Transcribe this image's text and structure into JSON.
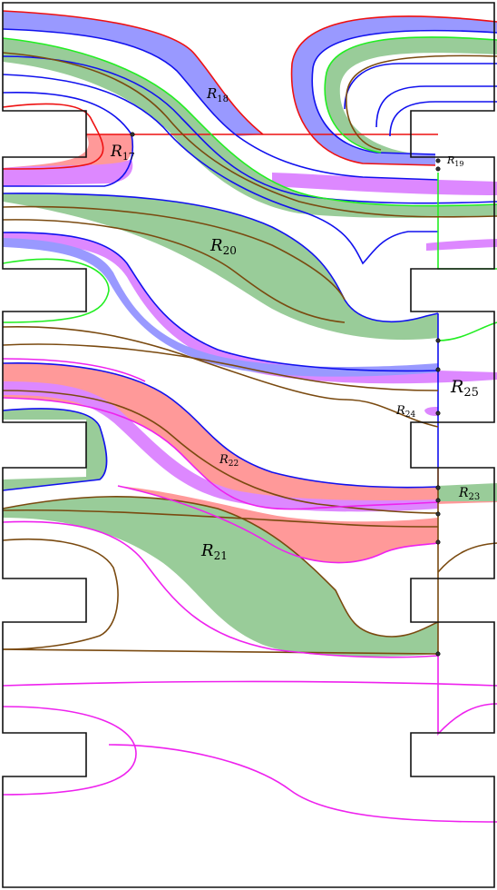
{
  "regions": [
    {
      "id": "r17",
      "name": "R",
      "sub": "17"
    },
    {
      "id": "r18",
      "name": "R",
      "sub": "18"
    },
    {
      "id": "r19",
      "name": "R",
      "sub": "19"
    },
    {
      "id": "r20",
      "name": "R",
      "sub": "20"
    },
    {
      "id": "r21",
      "name": "R",
      "sub": "21"
    },
    {
      "id": "r22",
      "name": "R",
      "sub": "22"
    },
    {
      "id": "r23",
      "name": "R",
      "sub": "23"
    },
    {
      "id": "r24",
      "name": "R",
      "sub": "24"
    },
    {
      "id": "r25",
      "name": "R",
      "sub": "25"
    }
  ],
  "colors": {
    "red": "#ee1111",
    "blue": "#1111ee",
    "green": "#22ee22",
    "brown": "#7a4a10",
    "magenta": "#ee22ee",
    "fill_blue": "#9999ff",
    "fill_green": "#99cc99",
    "fill_red": "#ff9999",
    "fill_violet": "#dd88ff",
    "outline": "#111111"
  }
}
